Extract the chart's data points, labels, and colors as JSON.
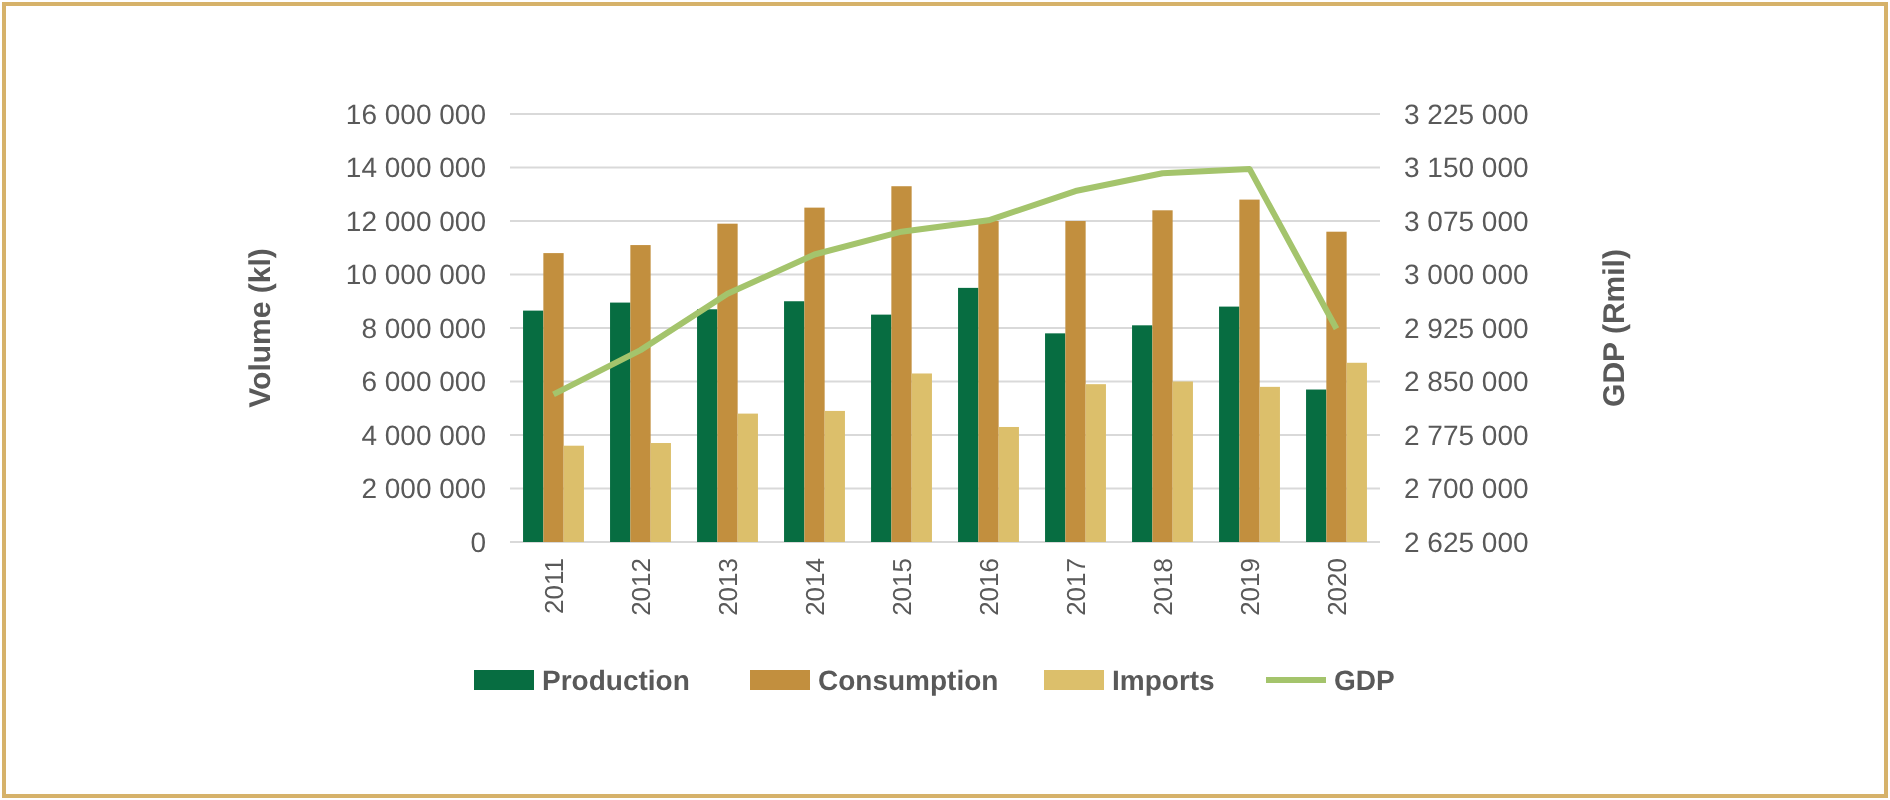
{
  "chart_data": {
    "type": "bar",
    "categories": [
      "2011",
      "2012",
      "2013",
      "2014",
      "2015",
      "2016",
      "2017",
      "2018",
      "2019",
      "2020"
    ],
    "ylabel": "Volume (kl)",
    "y2label": "GDP (Rmil)",
    "series": [
      {
        "name": "Production",
        "color": "#076d41",
        "values": [
          8650000,
          8950000,
          8700000,
          9000000,
          8500000,
          9500000,
          7800000,
          8100000,
          8800000,
          5700000
        ]
      },
      {
        "name": "Consumption",
        "color": "#c28f3e",
        "values": [
          10800000,
          11100000,
          11900000,
          12500000,
          13300000,
          12000000,
          12000000,
          12400000,
          12800000,
          11600000
        ]
      },
      {
        "name": "Imports",
        "color": "#dcbf6b",
        "values": [
          3600000,
          3700000,
          4800000,
          4900000,
          6300000,
          4300000,
          5900000,
          6000000,
          5800000,
          6700000
        ]
      },
      {
        "name": "GDP",
        "type": "line",
        "axis": "y2",
        "color": "#a4c46c",
        "values": [
          2832000,
          2894000,
          2973000,
          3028000,
          3060000,
          3076000,
          3117000,
          3142000,
          3148000,
          2924000
        ]
      }
    ],
    "ylim": [
      0,
      16000000
    ],
    "yticks": [
      0,
      {
        "value": 2000000,
        "label": "2 000 000"
      },
      {
        "value": 4000000,
        "label": "4 000 000"
      },
      {
        "value": 6000000,
        "label": "6 000 000"
      },
      {
        "value": 8000000,
        "label": "8 000 000"
      },
      {
        "value": 10000000,
        "label": "10 000 000"
      },
      {
        "value": 12000000,
        "label": "12 000 000"
      },
      {
        "value": 14000000,
        "label": "14 000 000"
      },
      {
        "value": 16000000,
        "label": "16 000 000"
      }
    ],
    "y2lim": [
      2625000,
      3225000
    ],
    "y2ticks": [
      {
        "value": 2625000,
        "label": "2 625 000"
      },
      {
        "value": 2700000,
        "label": "2 700 000"
      },
      {
        "value": 2775000,
        "label": "2 775 000"
      },
      {
        "value": 2850000,
        "label": "2 850 000"
      },
      {
        "value": 2925000,
        "label": "2 925 000"
      },
      {
        "value": 3000000,
        "label": "3 000 000"
      },
      {
        "value": 3075000,
        "label": "3 075 000"
      },
      {
        "value": 3150000,
        "label": "3 150 000"
      },
      {
        "value": 3225000,
        "label": "3 225 000"
      }
    ],
    "grid": "y",
    "legend": "bottom"
  }
}
